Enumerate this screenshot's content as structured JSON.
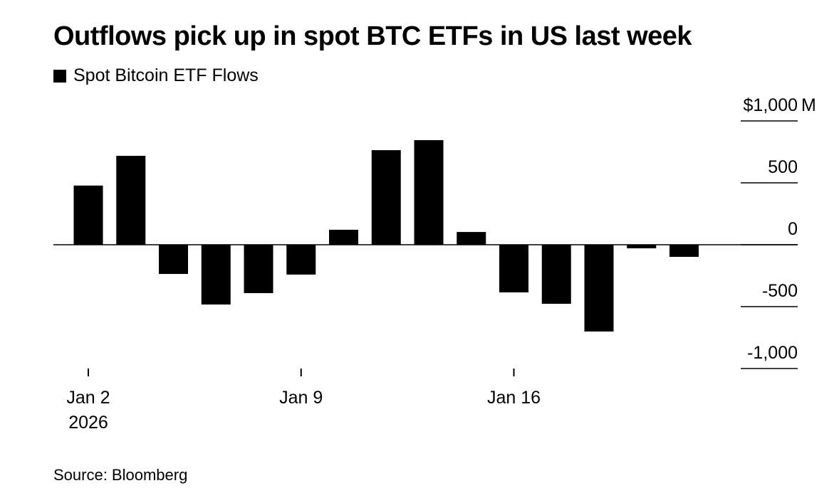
{
  "title": "Outflows pick up in spot BTC ETFs in US last week",
  "source": "Source: Bloomberg",
  "chart_data": {
    "type": "bar",
    "title": "Outflows pick up in spot BTC ETFs in US last week",
    "legend": [
      {
        "name": "Spot Bitcoin ETF Flows",
        "color": "#000000"
      }
    ],
    "legend_placement": "top-left",
    "categories": [
      "2026-01-02",
      "2026-01-05",
      "2026-01-06",
      "2026-01-07",
      "2026-01-08",
      "2026-01-09",
      "2026-01-12",
      "2026-01-13",
      "2026-01-14",
      "2026-01-15",
      "2026-01-16",
      "2026-01-20",
      "2026-01-21",
      "2026-01-22",
      "2026-01-23"
    ],
    "series": [
      {
        "name": "Spot Bitcoin ETF Flows",
        "values": [
          478,
          718,
          -236,
          -483,
          -391,
          -241,
          121,
          764,
          845,
          103,
          -385,
          -477,
          -701,
          -29,
          -98
        ]
      }
    ],
    "ylim": [
      -1000,
      1000
    ],
    "yticks": [
      {
        "value": 1000,
        "label": "$1,000"
      },
      {
        "value": 500,
        "label": "500"
      },
      {
        "value": 0,
        "label": "0"
      },
      {
        "value": -500,
        "label": "-500"
      },
      {
        "value": -1000,
        "label": "-1,000"
      }
    ],
    "yunit": "M",
    "xticks": [
      {
        "category": "2026-01-02",
        "label": "Jan 2",
        "sublabel": "2026"
      },
      {
        "category": "2026-01-09",
        "label": "Jan 9"
      },
      {
        "category": "2026-01-16",
        "label": "Jan 16"
      }
    ],
    "bar_color": "#000000",
    "grid": false
  }
}
